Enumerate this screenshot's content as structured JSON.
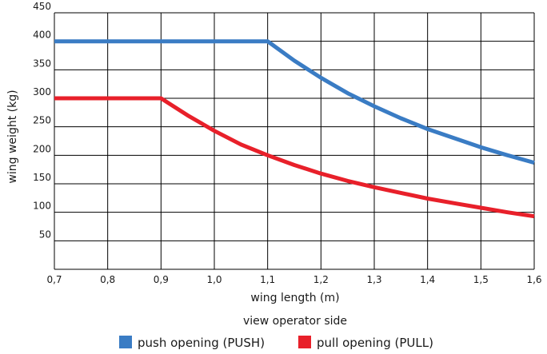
{
  "chart_data": {
    "type": "line",
    "xlabel": "wing length (m)",
    "ylabel": "wing weight (kg)",
    "subtitle": "view operator side",
    "xlim": [
      0.7,
      1.6
    ],
    "ylim": [
      0,
      450
    ],
    "x_ticks": [
      "0,7",
      "0,8",
      "0,9",
      "1,0",
      "1,1",
      "1,2",
      "1,3",
      "1,4",
      "1,5",
      "1,6"
    ],
    "y_ticks": [
      "50",
      "100",
      "150",
      "200",
      "250",
      "300",
      "350",
      "400",
      "450"
    ],
    "grid": true,
    "legend_position": "bottom-center",
    "series": [
      {
        "name": "push opening (PUSH)",
        "color": "#3a7cc4",
        "x": [
          0.7,
          0.8,
          0.9,
          1.0,
          1.1,
          1.15,
          1.2,
          1.25,
          1.3,
          1.35,
          1.4,
          1.45,
          1.5,
          1.55,
          1.6
        ],
        "y": [
          400,
          400,
          400,
          400,
          400,
          366,
          336,
          309,
          286,
          265,
          246,
          230,
          214,
          200,
          187
        ]
      },
      {
        "name": "pull opening (PULL)",
        "color": "#e8202a",
        "x": [
          0.7,
          0.8,
          0.9,
          0.95,
          1.0,
          1.05,
          1.1,
          1.15,
          1.2,
          1.25,
          1.3,
          1.35,
          1.4,
          1.45,
          1.5,
          1.55,
          1.6
        ],
        "y": [
          300,
          300,
          300,
          270,
          243,
          219,
          200,
          183,
          168,
          155,
          144,
          134,
          124,
          116,
          108,
          100,
          93
        ]
      }
    ]
  }
}
